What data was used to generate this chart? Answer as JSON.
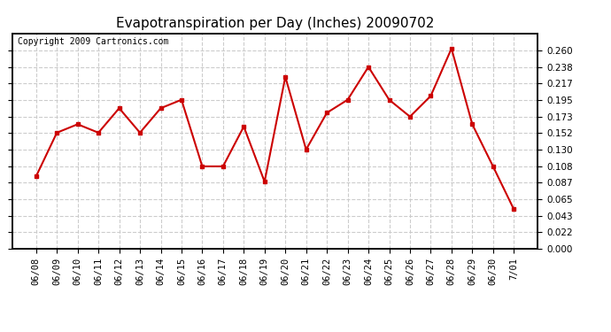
{
  "title": "Evapotranspiration per Day (Inches) 20090702",
  "copyright_text": "Copyright 2009 Cartronics.com",
  "dates": [
    "06/08",
    "06/09",
    "06/10",
    "06/11",
    "06/12",
    "06/13",
    "06/14",
    "06/15",
    "06/16",
    "06/17",
    "06/18",
    "06/19",
    "06/20",
    "06/21",
    "06/22",
    "06/23",
    "06/24",
    "06/25",
    "06/26",
    "06/27",
    "06/28",
    "06/29",
    "06/30",
    "7/01"
  ],
  "values": [
    0.095,
    0.152,
    0.163,
    0.152,
    0.184,
    0.152,
    0.184,
    0.195,
    0.108,
    0.108,
    0.16,
    0.088,
    0.225,
    0.13,
    0.178,
    0.195,
    0.238,
    0.195,
    0.173,
    0.2,
    0.262,
    0.163,
    0.108,
    0.052
  ],
  "line_color": "#cc0000",
  "marker": "s",
  "marker_size": 3,
  "background_color": "#ffffff",
  "grid_color": "#cccccc",
  "ylim": [
    0.0,
    0.282
  ],
  "yticks": [
    0.0,
    0.022,
    0.043,
    0.065,
    0.087,
    0.108,
    0.13,
    0.152,
    0.173,
    0.195,
    0.217,
    0.238,
    0.26
  ],
  "title_fontsize": 11,
  "copyright_fontsize": 7,
  "tick_fontsize": 7.5
}
